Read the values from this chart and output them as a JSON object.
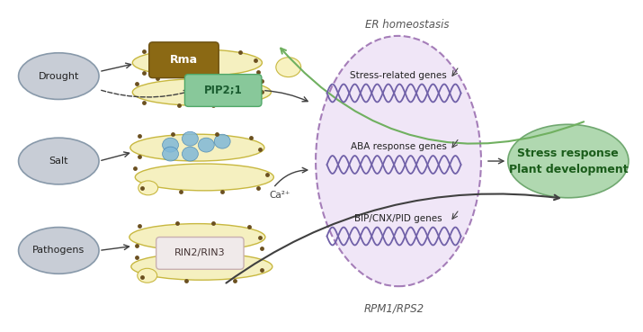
{
  "bg_color": "#ffffff",
  "stress_ellipse_color": "#c8cdd6",
  "stress_ellipse_ec": "#8899aa",
  "er_ellipse_color": "#f5f0c0",
  "er_ellipse_ec": "#c8b840",
  "rma_box_color": "#8b6914",
  "rma_box_ec": "#6b4f10",
  "pip_box_color": "#88c89a",
  "pip_box_ec": "#50a868",
  "rin_box_color": "#f0eaea",
  "rin_box_ec": "#c8b0b0",
  "dot_color": "#6b5020",
  "ca_dot_color": "#80b8d8",
  "nucleus_bg": "#ede0f5",
  "nucleus_border": "#9060a8",
  "dna_color": "#7060a8",
  "stress_response_color": "#b0d8b0",
  "stress_response_ec": "#70a870",
  "arrow_color": "#404040",
  "green_arrow_color": "#70b060",
  "er_homeostasis_label": "ER homeostasis",
  "rpm_label": "RPM1/RPS2",
  "rma_label": "Rma",
  "pip_label": "PIP2;1",
  "rin_label": "RIN2/RIN3",
  "ca_label": "Ca²⁺",
  "stress_response_label": "Stress response\nPlant development",
  "gene_labels": [
    "Stress-related genes",
    "ABA response genes",
    "BIP/CNX/PID genes"
  ],
  "stress_labels": [
    "Drought",
    "Salt",
    "Pathogens"
  ]
}
